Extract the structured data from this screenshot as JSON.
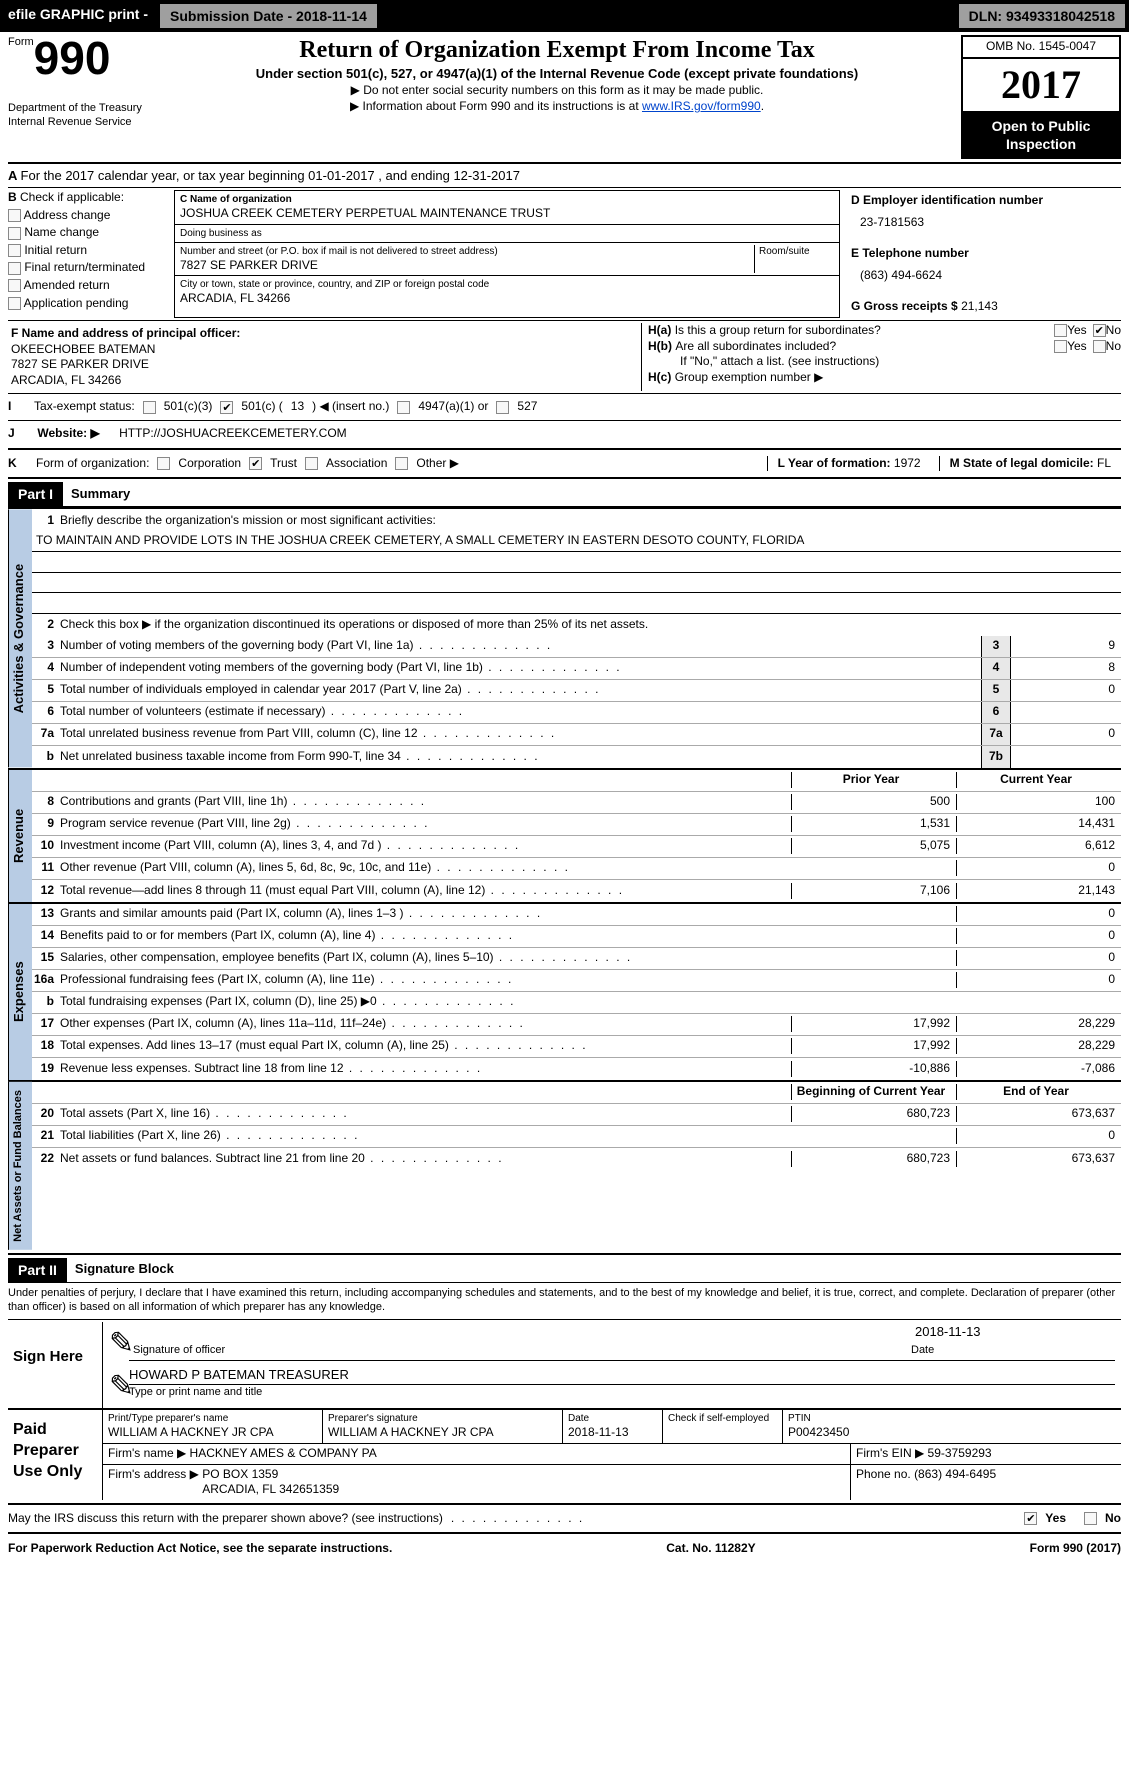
{
  "topbar": {
    "efile": "efile GRAPHIC print -",
    "subdate_lbl": "Submission Date -",
    "subdate": "2018-11-14",
    "dln_lbl": "DLN:",
    "dln": "93493318042518"
  },
  "header": {
    "form_label": "Form",
    "form_number": "990",
    "dept1": "Department of the Treasury",
    "dept2": "Internal Revenue Service",
    "title": "Return of Organization Exempt From Income Tax",
    "subtitle": "Under section 501(c), 527, or 4947(a)(1) of the Internal Revenue Code (except private foundations)",
    "note1": "▶ Do not enter social security numbers on this form as it may be made public.",
    "note2_pre": "▶ Information about Form 990 and its instructions is at ",
    "note2_link": "www.IRS.gov/form990",
    "omb": "OMB No. 1545-0047",
    "year": "2017",
    "inspection": "Open to Public Inspection"
  },
  "sectionA": {
    "period": "For the 2017 calendar year, or tax year beginning 01-01-2017   , and ending 12-31-2017",
    "b_label": "Check if applicable:",
    "b_opts": [
      "Address change",
      "Name change",
      "Initial return",
      "Final return/terminated",
      "Amended return",
      "Application pending"
    ],
    "c_name_lbl": "C Name of organization",
    "c_name": "JOSHUA CREEK CEMETERY PERPETUAL MAINTENANCE TRUST",
    "dba_lbl": "Doing business as",
    "dba": "",
    "addr_lbl": "Number and street (or P.O. box if mail is not delivered to street address)",
    "room_lbl": "Room/suite",
    "addr": "7827 SE PARKER DRIVE",
    "city_lbl": "City or town, state or province, country, and ZIP or foreign postal code",
    "city": "ARCADIA, FL 34266",
    "d_ein_lbl": "D Employer identification number",
    "d_ein": "23-7181563",
    "e_tel_lbl": "E Telephone number",
    "e_tel": "(863) 494-6624",
    "g_gross_lbl": "G Gross receipts $",
    "g_gross": "21,143",
    "f_officer_lbl": "F  Name and address of principal officer:",
    "f_officer": "OKEECHOBEE BATEMAN\n7827 SE PARKER DRIVE\nARCADIA, FL  34266",
    "ha": "Is this a group return for subordinates?",
    "hb": "Are all subordinates included?",
    "h_no": "If \"No,\" attach a list. (see instructions)",
    "hc": "Group exemption number ▶",
    "i_lbl": "Tax-exempt status:",
    "i_501c3": "501(c)(3)",
    "i_501c": "501(c) (",
    "i_501c_num": "13",
    "i_insert": ") ◀ (insert no.)",
    "i_4947": "4947(a)(1) or",
    "i_527": "527",
    "j_lbl": "Website: ▶",
    "j_url": "HTTP://JOSHUACREEKCEMETERY.COM",
    "k_lbl": "Form of organization:",
    "k_opts": [
      "Corporation",
      "Trust",
      "Association",
      "Other ▶"
    ],
    "l_lbl": "L Year of formation:",
    "l_val": "1972",
    "m_lbl": "M State of legal domicile:",
    "m_val": "FL"
  },
  "part1": {
    "title": "Part I",
    "heading": "Summary",
    "mission_lbl": "Briefly describe the organization's mission or most significant activities:",
    "mission": "TO MAINTAIN AND PROVIDE LOTS IN THE JOSHUA CREEK CEMETERY, A SMALL CEMETERY IN EASTERN DESOTO COUNTY, FLORIDA",
    "line2": "Check this box ▶        if the organization discontinued its operations or disposed of more than 25% of its net assets.",
    "gov_rows": [
      {
        "n": "3",
        "t": "Number of voting members of the governing body (Part VI, line 1a)",
        "box": "3",
        "v": "9"
      },
      {
        "n": "4",
        "t": "Number of independent voting members of the governing body (Part VI, line 1b)",
        "box": "4",
        "v": "8"
      },
      {
        "n": "5",
        "t": "Total number of individuals employed in calendar year 2017 (Part V, line 2a)",
        "box": "5",
        "v": "0"
      },
      {
        "n": "6",
        "t": "Total number of volunteers (estimate if necessary)",
        "box": "6",
        "v": ""
      },
      {
        "n": "7a",
        "t": "Total unrelated business revenue from Part VIII, column (C), line 12",
        "box": "7a",
        "v": "0"
      },
      {
        "n": "b",
        "t": "Net unrelated business taxable income from Form 990-T, line 34",
        "box": "7b",
        "v": ""
      }
    ],
    "py_hdr": "Prior Year",
    "cy_hdr": "Current Year",
    "revenue_rows": [
      {
        "n": "8",
        "t": "Contributions and grants (Part VIII, line 1h)",
        "py": "500",
        "cy": "100"
      },
      {
        "n": "9",
        "t": "Program service revenue (Part VIII, line 2g)",
        "py": "1,531",
        "cy": "14,431"
      },
      {
        "n": "10",
        "t": "Investment income (Part VIII, column (A), lines 3, 4, and 7d )",
        "py": "5,075",
        "cy": "6,612"
      },
      {
        "n": "11",
        "t": "Other revenue (Part VIII, column (A), lines 5, 6d, 8c, 9c, 10c, and 11e)",
        "py": "",
        "cy": "0"
      },
      {
        "n": "12",
        "t": "Total revenue—add lines 8 through 11 (must equal Part VIII, column (A), line 12)",
        "py": "7,106",
        "cy": "21,143"
      }
    ],
    "expense_rows": [
      {
        "n": "13",
        "t": "Grants and similar amounts paid (Part IX, column (A), lines 1–3 )",
        "py": "",
        "cy": "0"
      },
      {
        "n": "14",
        "t": "Benefits paid to or for members (Part IX, column (A), line 4)",
        "py": "",
        "cy": "0"
      },
      {
        "n": "15",
        "t": "Salaries, other compensation, employee benefits (Part IX, column (A), lines 5–10)",
        "py": "",
        "cy": "0"
      },
      {
        "n": "16a",
        "t": "Professional fundraising fees (Part IX, column (A), line 11e)",
        "py": "",
        "cy": "0"
      },
      {
        "n": "b",
        "t": "Total fundraising expenses (Part IX, column (D), line 25) ▶0",
        "py": "GRAY",
        "cy": "GRAY"
      },
      {
        "n": "17",
        "t": "Other expenses (Part IX, column (A), lines 11a–11d, 11f–24e)",
        "py": "17,992",
        "cy": "28,229"
      },
      {
        "n": "18",
        "t": "Total expenses. Add lines 13–17 (must equal Part IX, column (A), line 25)",
        "py": "17,992",
        "cy": "28,229"
      },
      {
        "n": "19",
        "t": "Revenue less expenses. Subtract line 18 from line 12",
        "py": "-10,886",
        "cy": "-7,086"
      }
    ],
    "na_hdr_py": "Beginning of Current Year",
    "na_hdr_cy": "End of Year",
    "netasset_rows": [
      {
        "n": "20",
        "t": "Total assets (Part X, line 16)",
        "py": "680,723",
        "cy": "673,637"
      },
      {
        "n": "21",
        "t": "Total liabilities (Part X, line 26)",
        "py": "",
        "cy": "0"
      },
      {
        "n": "22",
        "t": "Net assets or fund balances. Subtract line 21 from line 20",
        "py": "680,723",
        "cy": "673,637"
      }
    ],
    "tabs": {
      "gov": "Activities & Governance",
      "rev": "Revenue",
      "exp": "Expenses",
      "na": "Net Assets or Fund Balances"
    }
  },
  "part2": {
    "title": "Part II",
    "heading": "Signature Block",
    "decl": "Under penalties of perjury, I declare that I have examined this return, including accompanying schedules and statements, and to the best of my knowledge and belief, it is true, correct, and complete. Declaration of preparer (other than officer) is based on all information of which preparer has any knowledge.",
    "sign_here": "Sign Here",
    "sig_officer": "Signature of officer",
    "sig_date_lbl": "Date",
    "sig_date": "2018-11-13",
    "officer_name": "HOWARD P BATEMAN TREASURER",
    "officer_name_lbl": "Type or print name and title",
    "paid_lbl": "Paid Preparer Use Only",
    "prep_name_lbl": "Print/Type preparer's name",
    "prep_name": "WILLIAM A HACKNEY JR CPA",
    "prep_sig_lbl": "Preparer's signature",
    "prep_sig": "WILLIAM A HACKNEY JR CPA",
    "prep_date_lbl": "Date",
    "prep_date": "2018-11-13",
    "prep_check": "Check        if self-employed",
    "ptin_lbl": "PTIN",
    "ptin": "P00423450",
    "firm_name_lbl": "Firm's name     ▶",
    "firm_name": "HACKNEY AMES & COMPANY PA",
    "firm_ein_lbl": "Firm's EIN ▶",
    "firm_ein": "59-3759293",
    "firm_addr_lbl": "Firm's address ▶",
    "firm_addr": "PO BOX 1359\nARCADIA, FL  342651359",
    "firm_phone_lbl": "Phone no.",
    "firm_phone": "(863) 494-6495",
    "discuss": "May the IRS discuss this return with the preparer shown above? (see instructions)",
    "yes": "Yes",
    "no": "No"
  },
  "footer": {
    "pra": "For Paperwork Reduction Act Notice, see the separate instructions.",
    "cat": "Cat. No. 11282Y",
    "form": "Form 990 (2017)"
  }
}
